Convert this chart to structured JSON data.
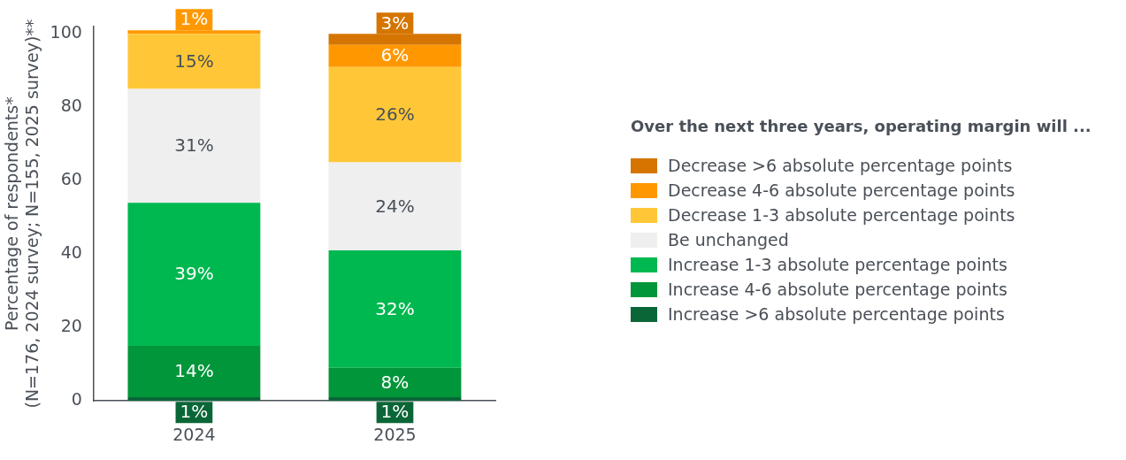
{
  "chart_data": {
    "type": "bar",
    "stacked": true,
    "ylabel": "Percentage of respondents*\n(N=176, 2024 survey; N=155, 2025 survey)**",
    "legend_title": "Over the next three years, operating margin will ...",
    "legend": "right",
    "grid": false,
    "categories": [
      "2024",
      "2025"
    ],
    "ylim": [
      0,
      102
    ],
    "yticks": [
      0,
      20,
      40,
      60,
      80,
      100
    ],
    "series": [
      {
        "name": "Increase >6 absolute percentage points",
        "color": "#0a6637",
        "values": [
          1,
          1
        ],
        "value_labels": [
          "1%",
          "1%"
        ]
      },
      {
        "name": "Increase 4-6 absolute percentage points",
        "color": "#02963a",
        "values": [
          14,
          8
        ],
        "value_labels": [
          "14%",
          "8%"
        ]
      },
      {
        "name": "Increase 1-3 absolute percentage points",
        "color": "#00b850",
        "values": [
          39,
          32
        ],
        "value_labels": [
          "39%",
          "32%"
        ]
      },
      {
        "name": "Be unchanged",
        "color": "#efefef",
        "values": [
          31,
          24
        ],
        "value_labels": [
          "31%",
          "24%"
        ]
      },
      {
        "name": "Decrease 1-3 absolute percentage points",
        "color": "#ffc737",
        "values": [
          15,
          26
        ],
        "value_labels": [
          "15%",
          "26%"
        ]
      },
      {
        "name": "Decrease 4-6 absolute percentage points",
        "color": "#ff9800",
        "values": [
          1,
          6
        ],
        "value_labels": [
          "1%",
          "6%"
        ]
      },
      {
        "name": "Decrease >6 absolute percentage points",
        "color": "#d57500",
        "values": [
          null,
          3
        ],
        "value_labels": [
          null,
          "3%"
        ]
      }
    ]
  }
}
